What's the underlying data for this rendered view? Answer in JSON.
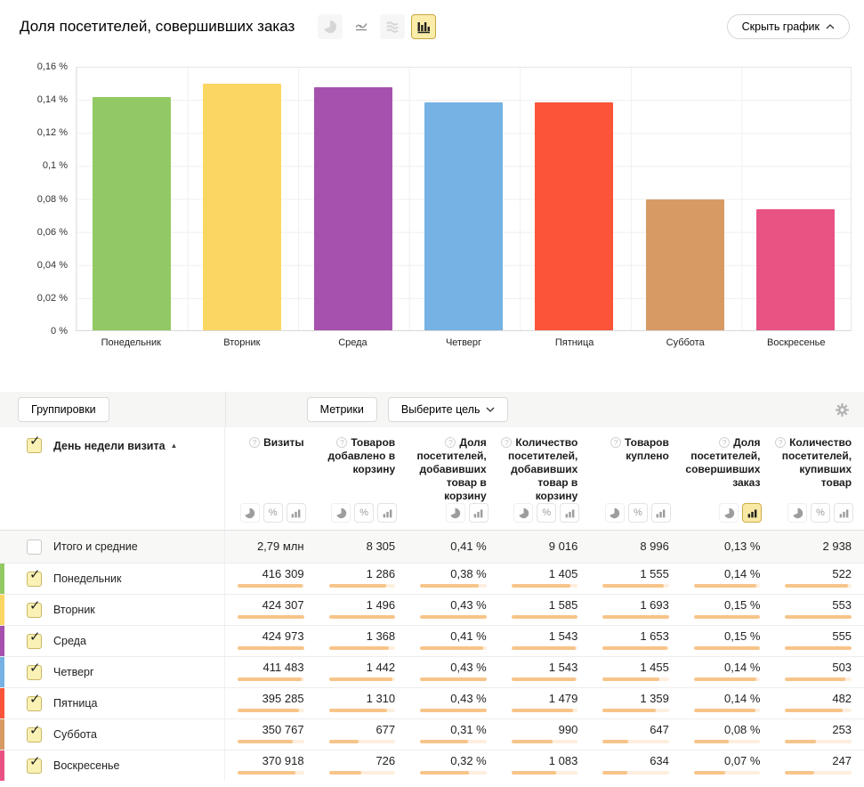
{
  "header": {
    "title": "Доля посетителей, совершивших заказ",
    "hide_chart_label": "Скрыть график",
    "chart_type_icons": [
      "pie-chart",
      "line-chart",
      "stacked-chart",
      "bar-chart"
    ],
    "selected_chart_type": "bar-chart"
  },
  "chart_data": {
    "type": "bar",
    "title": "Доля посетителей, совершивших заказ",
    "categories": [
      "Понедельник",
      "Вторник",
      "Среда",
      "Четверг",
      "Пятница",
      "Суббота",
      "Воскресенье"
    ],
    "values": [
      0.142,
      0.15,
      0.148,
      0.139,
      0.139,
      0.08,
      0.074
    ],
    "colors": [
      "#92c964",
      "#fcd662",
      "#a651ad",
      "#76b2e3",
      "#fb5438",
      "#d79a64",
      "#e95383"
    ],
    "ylim": [
      0,
      0.16
    ],
    "yticks": [
      "0,16 %",
      "0,14 %",
      "0,12 %",
      "0,1 %",
      "0,08 %",
      "0,06 %",
      "0,04 %",
      "0,02 %",
      "0 %"
    ],
    "xlabel": "",
    "ylabel": "",
    "grid": true,
    "legend": false
  },
  "toolbar": {
    "groupings_label": "Группировки",
    "metrics_label": "Метрики",
    "goal_label": "Выберите цель",
    "settings_icon": "gear-icon"
  },
  "table": {
    "row_header": "День недели визита",
    "sort_direction": "asc",
    "columns": [
      {
        "label": "Визиты",
        "icons": [
          "pie",
          "percent",
          "bars"
        ],
        "selected_icon": null
      },
      {
        "label": "Товаров добавлено в корзину",
        "icons": [
          "pie",
          "percent",
          "bars"
        ],
        "selected_icon": null
      },
      {
        "label": "Доля посетителей, добавивших товар в корзину",
        "icons": [
          "pie",
          "bars"
        ],
        "selected_icon": null
      },
      {
        "label": "Количество посетителей, добавивших товар в корзину",
        "icons": [
          "pie",
          "percent",
          "bars"
        ],
        "selected_icon": null
      },
      {
        "label": "Товаров куплено",
        "icons": [
          "pie",
          "percent",
          "bars"
        ],
        "selected_icon": null
      },
      {
        "label": "Доля посетителей, совершивших заказ",
        "icons": [
          "pie",
          "bars"
        ],
        "selected_icon": "bars"
      },
      {
        "label": "Количество посетителей, купивших товар",
        "icons": [
          "pie",
          "percent",
          "bars"
        ],
        "selected_icon": null
      }
    ],
    "totals": {
      "label": "Итого и средние",
      "checked": false,
      "values": [
        "2,79 млн",
        "8 305",
        "0,41 %",
        "9 016",
        "8 996",
        "0,13 %",
        "2 938"
      ]
    },
    "rows": [
      {
        "label": "Понедельник",
        "color": "#92c964",
        "checked": true,
        "values": [
          "416 309",
          "1 286",
          "0,38 %",
          "1 405",
          "1 555",
          "0,14 %",
          "522"
        ],
        "bar_pct": [
          98,
          86,
          88,
          89,
          92,
          94,
          94
        ]
      },
      {
        "label": "Вторник",
        "color": "#fcd662",
        "checked": true,
        "values": [
          "424 307",
          "1 496",
          "0,43 %",
          "1 585",
          "1 693",
          "0,15 %",
          "553"
        ],
        "bar_pct": [
          100,
          100,
          100,
          100,
          100,
          100,
          100
        ]
      },
      {
        "label": "Среда",
        "color": "#a651ad",
        "checked": true,
        "values": [
          "424 973",
          "1 368",
          "0,41 %",
          "1 543",
          "1 653",
          "0,15 %",
          "555"
        ],
        "bar_pct": [
          100,
          91,
          95,
          97,
          98,
          99,
          100
        ]
      },
      {
        "label": "Четверг",
        "color": "#76b2e3",
        "checked": true,
        "values": [
          "411 483",
          "1 442",
          "0,43 %",
          "1 543",
          "1 455",
          "0,14 %",
          "503"
        ],
        "bar_pct": [
          97,
          96,
          100,
          97,
          86,
          94,
          91
        ]
      },
      {
        "label": "Пятница",
        "color": "#fb5438",
        "checked": true,
        "values": [
          "395 285",
          "1 310",
          "0,43 %",
          "1 479",
          "1 359",
          "0,14 %",
          "482"
        ],
        "bar_pct": [
          93,
          88,
          100,
          93,
          80,
          93,
          87
        ]
      },
      {
        "label": "Суббота",
        "color": "#d79a64",
        "checked": true,
        "values": [
          "350 767",
          "677",
          "0,31 %",
          "990",
          "647",
          "0,08 %",
          "253"
        ],
        "bar_pct": [
          83,
          45,
          72,
          62,
          38,
          53,
          46
        ]
      },
      {
        "label": "Воскресенье",
        "color": "#e95383",
        "checked": true,
        "values": [
          "370 918",
          "726",
          "0,32 %",
          "1 083",
          "634",
          "0,07 %",
          "247"
        ],
        "bar_pct": [
          87,
          49,
          74,
          68,
          37,
          47,
          44
        ]
      }
    ]
  }
}
